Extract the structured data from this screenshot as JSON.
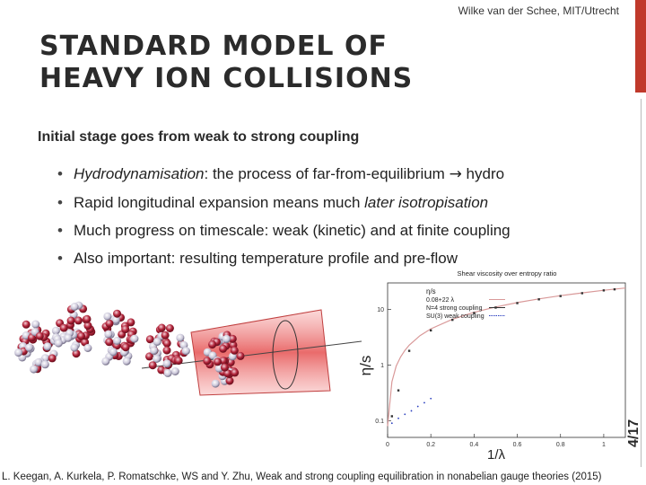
{
  "header": {
    "author": "Wilke van der Schee, MIT/Utrecht",
    "title_line1": "STANDARD MODEL OF",
    "title_line2": "HEAVY ION COLLISIONS"
  },
  "subtitle": "Initial stage goes from weak to strong coupling",
  "bullets": [
    {
      "italic": "Hydrodynamisation",
      "text": ": the process of far-from-equilibrium ",
      "arrow": "→",
      "tail": " hydro"
    },
    {
      "text": "Rapid longitudinal expansion means much ",
      "italic": "later isotropisation"
    },
    {
      "text": "Much progress on timescale: weak (kinetic) and at finite coupling"
    },
    {
      "text": "Also important: resulting temperature profile and pre-flow"
    }
  ],
  "page_number": "4/17",
  "citation": "L. Keegan, A. Kurkela, P. Romatschke, WS and Y. Zhu, Weak and strong coupling equilibration in nonabelian gauge theories (2015)",
  "colors": {
    "accent_red": "#c0392b",
    "fit_line": "#d99999",
    "n4_points": "#333333",
    "su3_points": "#2b3fbf"
  },
  "chart_data": {
    "type": "scatter",
    "title": "Shear viscosity over entropy ratio",
    "xlabel": "1/λ",
    "ylabel": "η/s",
    "xlim": [
      0,
      1.1
    ],
    "ylim": [
      0.05,
      30
    ],
    "yscale": "log",
    "x_ticks": [
      "0",
      "0.2",
      "0.4",
      "0.6",
      "0.8",
      "1"
    ],
    "y_ticks": [
      "0.1",
      "1",
      "10"
    ],
    "legend_position": "top-left",
    "legend": [
      "η/s",
      "0.08+22 λ",
      "N=4 strong coupling",
      "SU(3) weak coupling"
    ],
    "series": [
      {
        "name": "0.08+22 λ",
        "style": "line",
        "x": [
          0.0,
          0.02,
          0.04,
          0.06,
          0.08,
          0.1,
          0.15,
          0.2,
          0.3,
          0.4,
          0.5,
          0.6,
          0.7,
          0.8,
          0.9,
          1.0,
          1.1
        ],
        "y": [
          0.08,
          0.5,
          0.96,
          1.4,
          1.84,
          2.28,
          3.38,
          4.48,
          6.68,
          8.88,
          11.08,
          13.28,
          15.48,
          17.68,
          19.88,
          22.08,
          24.28
        ]
      },
      {
        "name": "N=4 strong coupling",
        "style": "points",
        "x": [
          0.02,
          0.05,
          0.1,
          0.2,
          0.3,
          0.4,
          0.5,
          0.6,
          0.7,
          0.8,
          0.9,
          1.0,
          1.05
        ],
        "y": [
          0.12,
          0.35,
          1.8,
          4.2,
          6.5,
          8.6,
          10.8,
          13.0,
          15.2,
          17.4,
          19.6,
          22.0,
          23.0
        ]
      },
      {
        "name": "SU(3) weak coupling",
        "style": "points",
        "x": [
          0.02,
          0.05,
          0.08,
          0.11,
          0.14,
          0.17,
          0.2
        ],
        "y": [
          0.09,
          0.11,
          0.13,
          0.15,
          0.18,
          0.21,
          0.25
        ]
      }
    ]
  }
}
